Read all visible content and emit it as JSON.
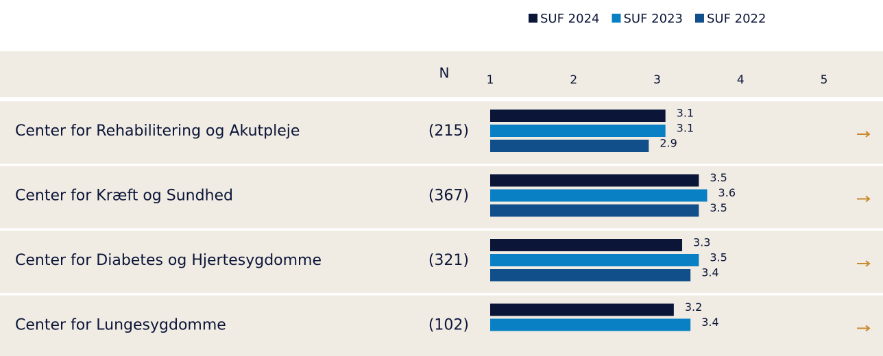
{
  "chart_data": {
    "type": "bar",
    "orientation": "horizontal",
    "n_header": "N",
    "categories": [
      "Center for Rehabilitering og Akutpleje",
      "Center for Kræft og Sundhed",
      "Center for Diabetes og Hjertesygdomme",
      "Center for Lungesygdomme"
    ],
    "n": [
      "(215)",
      "(367)",
      "(321)",
      "(102)"
    ],
    "series": [
      {
        "name": "SUF 2024",
        "color": "#0b1538",
        "values": [
          3.1,
          3.5,
          3.3,
          3.2
        ]
      },
      {
        "name": "SUF 2023",
        "color": "#0a80c4",
        "values": [
          3.1,
          3.6,
          3.5,
          3.4
        ]
      },
      {
        "name": "SUF 2022",
        "color": "#114f8a",
        "values": [
          2.9,
          3.5,
          3.4,
          null
        ]
      }
    ],
    "xlim": [
      1,
      5
    ],
    "xticks": [
      1,
      2,
      3,
      4,
      5
    ],
    "grid": false
  }
}
